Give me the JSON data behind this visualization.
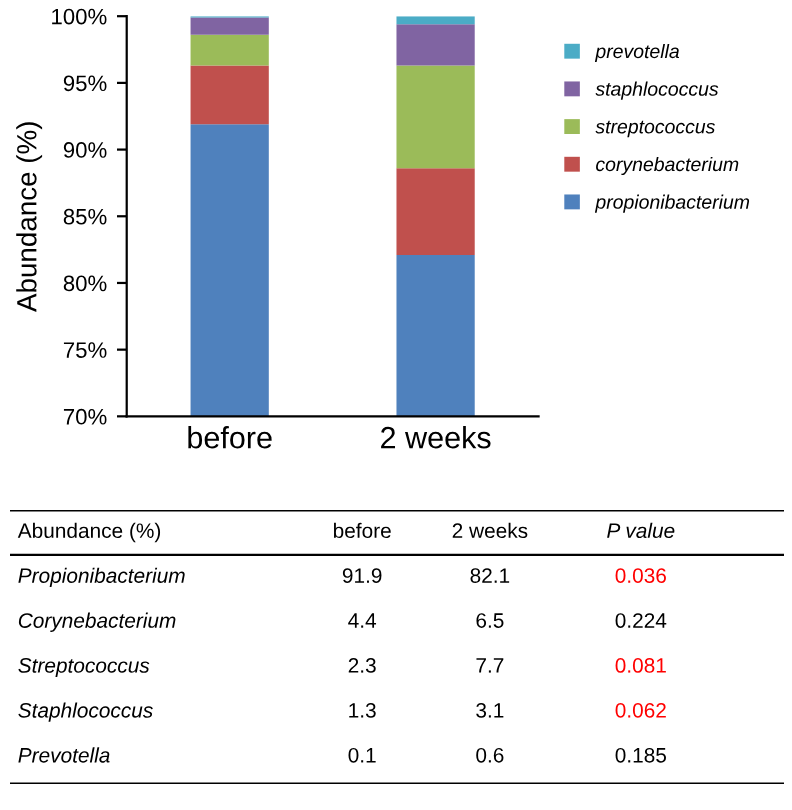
{
  "chart_data": [
    {
      "type": "bar",
      "ylabel": "Abundance (%)",
      "categories": [
        "before",
        "2 weeks"
      ],
      "series": [
        {
          "name": "propionibacterium",
          "color": "#4f81bd",
          "values": [
            91.9,
            82.1
          ],
          "base": [
            0,
            0
          ]
        },
        {
          "name": "corynebacterium",
          "color": "#c0504d",
          "values": [
            4.4,
            6.5
          ],
          "base": [
            91.9,
            82.1
          ]
        },
        {
          "name": "streptococcus",
          "color": "#9bbb59",
          "values": [
            2.3,
            7.7
          ],
          "base": [
            96.3,
            88.6
          ]
        },
        {
          "name": "staphlococcus",
          "color": "#8064a2",
          "values": [
            1.3,
            3.1
          ],
          "base": [
            98.6,
            96.3
          ]
        },
        {
          "name": "prevotella",
          "color": "#4bacc6",
          "values": [
            0.1,
            0.6
          ],
          "base": [
            99.9,
            99.4
          ]
        }
      ],
      "ylim": [
        70,
        100
      ],
      "yticks": [
        {
          "value": 70,
          "label": "70%"
        },
        {
          "value": 75,
          "label": "75%"
        },
        {
          "value": 80,
          "label": "80%"
        },
        {
          "value": 85,
          "label": "85%"
        },
        {
          "value": 90,
          "label": "90%"
        },
        {
          "value": 95,
          "label": "95%"
        },
        {
          "value": 100,
          "label": "100%"
        }
      ],
      "legend": "right",
      "grid": false
    },
    {
      "type": "other",
      "annotations": [
        "Abundance (%)",
        "before",
        "2 weeks",
        "P value",
        "Propionibacterium",
        "91.9",
        "82.1",
        "0.036",
        "Corynebacterium",
        "4.4",
        "6.5",
        "0.224",
        "Streptococcus",
        "2.3",
        "7.7",
        "0.081",
        "Staphlococcus",
        "1.3",
        "3.1",
        "0.062",
        "Prevotella",
        "0.1",
        "0.6",
        "0.185"
      ]
    }
  ]
}
